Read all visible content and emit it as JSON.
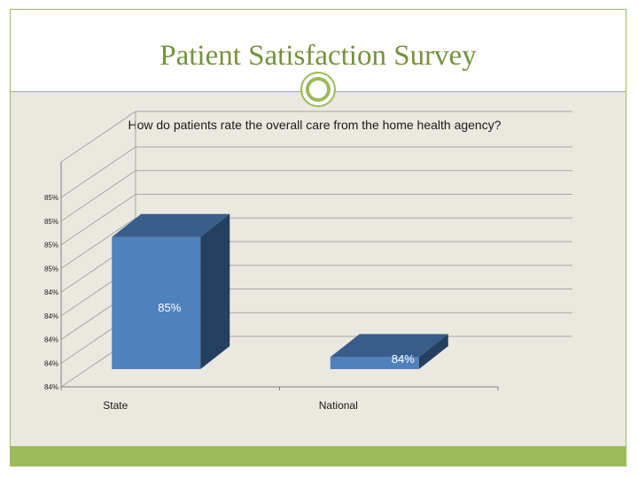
{
  "slide": {
    "title": "Patient Satisfaction Survey"
  },
  "chart_data": {
    "type": "bar",
    "title": "How do patients rate the overall care from the home health agency?",
    "categories": [
      "State",
      "National"
    ],
    "values": [
      85,
      84
    ],
    "data_labels": [
      "85%",
      "84%"
    ],
    "y_tick_labels": [
      "84%",
      "84%",
      "84%",
      "84%",
      "84%",
      "85%",
      "85%",
      "85%",
      "85%"
    ],
    "ylim": [
      83.9,
      85.3
    ],
    "xlabel": "",
    "ylabel": "",
    "grid": true,
    "style": "3d-column",
    "colors": {
      "front": "#4f81bd",
      "top": "#385d8a",
      "side": "#243f60"
    }
  }
}
